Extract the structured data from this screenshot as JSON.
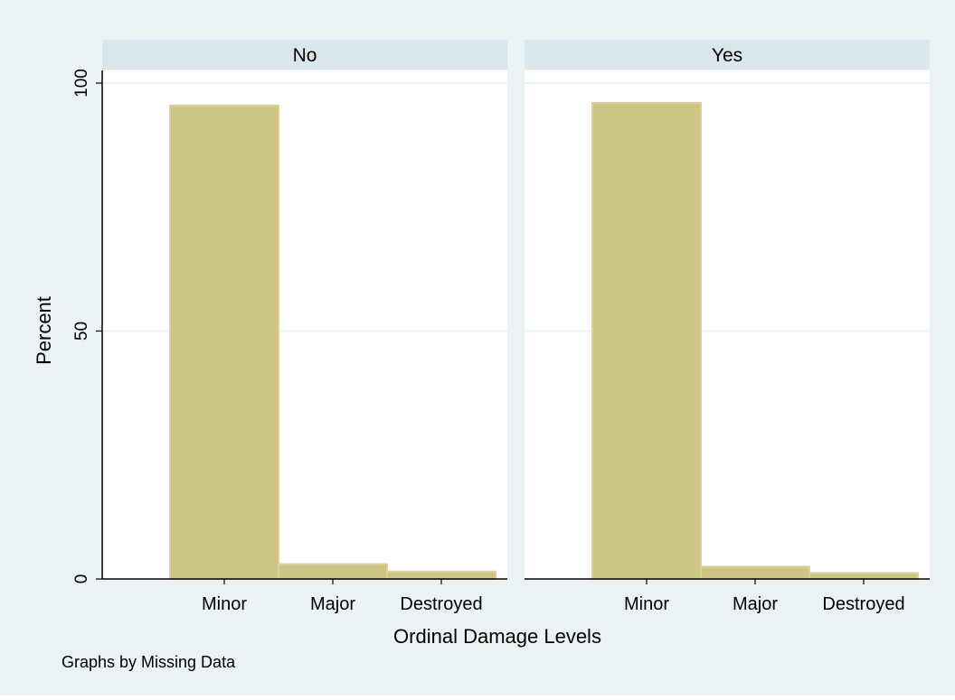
{
  "colors": {
    "outer_background": "#eaf2f3",
    "panel_background": "#ffffff",
    "strip_background": "#d9e6eb",
    "bar_fill": "#cec484",
    "bar_edge": "#d9d2a0",
    "gridline": "#eaf2f3",
    "axis": "#000000"
  },
  "chart_data": {
    "type": "bar",
    "title": "",
    "xlabel": "Ordinal Damage Levels",
    "ylabel": "Percent",
    "ylim": [
      0,
      100
    ],
    "yticks": [
      0,
      50,
      100
    ],
    "grid": true,
    "categories": [
      "Minor",
      "Major",
      "Destroyed"
    ],
    "panels": [
      {
        "label": "No",
        "values": [
          95.5,
          3.0,
          1.5
        ]
      },
      {
        "label": "Yes",
        "values": [
          96.0,
          2.5,
          1.2
        ]
      }
    ],
    "note": "Graphs by Missing Data"
  }
}
